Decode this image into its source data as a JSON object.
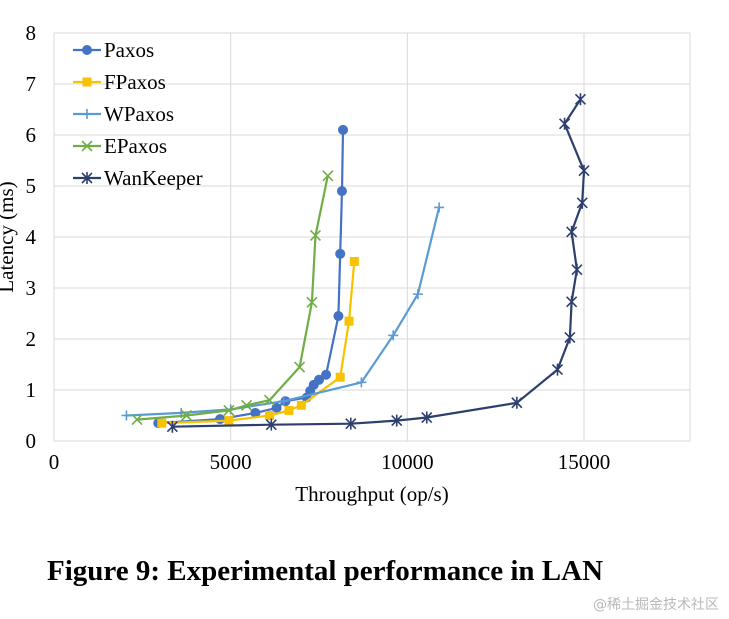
{
  "chart_data": {
    "type": "line",
    "xlabel": "Throughput (op/s)",
    "ylabel": "Latency (ms)",
    "xlim": [
      0,
      18000
    ],
    "ylim": [
      0,
      8
    ],
    "xticks": [
      0,
      5000,
      10000,
      15000
    ],
    "yticks": [
      0,
      1,
      2,
      3,
      4,
      5,
      6,
      7,
      8
    ],
    "grid": true,
    "legend_position": "top-left",
    "series": [
      {
        "name": "Paxos",
        "color": "#4472c4",
        "marker": "circle",
        "points": [
          [
            2950,
            0.35
          ],
          [
            4700,
            0.43
          ],
          [
            5700,
            0.55
          ],
          [
            6300,
            0.65
          ],
          [
            6550,
            0.78
          ],
          [
            7150,
            0.85
          ],
          [
            7250,
            0.98
          ],
          [
            7350,
            1.1
          ],
          [
            7500,
            1.2
          ],
          [
            7700,
            1.3
          ],
          [
            8050,
            2.45
          ],
          [
            8100,
            3.67
          ],
          [
            8150,
            4.9
          ],
          [
            8180,
            6.1
          ]
        ]
      },
      {
        "name": "FPaxos",
        "color": "#f7c200",
        "marker": "square",
        "points": [
          [
            3050,
            0.35
          ],
          [
            4950,
            0.4
          ],
          [
            6100,
            0.5
          ],
          [
            6650,
            0.6
          ],
          [
            7000,
            0.7
          ],
          [
            8100,
            1.25
          ],
          [
            8350,
            2.35
          ],
          [
            8500,
            3.52
          ]
        ]
      },
      {
        "name": "WPaxos",
        "color": "#5b9bd5",
        "marker": "plus",
        "points": [
          [
            2050,
            0.5
          ],
          [
            3600,
            0.55
          ],
          [
            5000,
            0.62
          ],
          [
            6500,
            0.78
          ],
          [
            8700,
            1.15
          ],
          [
            9600,
            2.07
          ],
          [
            10300,
            2.88
          ],
          [
            10900,
            4.58
          ]
        ]
      },
      {
        "name": "EPaxos",
        "color": "#70ad47",
        "marker": "x",
        "points": [
          [
            2350,
            0.42
          ],
          [
            3750,
            0.5
          ],
          [
            4950,
            0.6
          ],
          [
            5450,
            0.7
          ],
          [
            6100,
            0.8
          ],
          [
            6950,
            1.45
          ],
          [
            7300,
            2.72
          ],
          [
            7400,
            4.03
          ],
          [
            7750,
            5.2
          ]
        ]
      },
      {
        "name": "WanKeeper",
        "color": "#2e3f6e",
        "marker": "star",
        "points": [
          [
            3350,
            0.28
          ],
          [
            6150,
            0.32
          ],
          [
            8400,
            0.34
          ],
          [
            9700,
            0.4
          ],
          [
            10550,
            0.46
          ],
          [
            13100,
            0.75
          ],
          [
            14250,
            1.4
          ],
          [
            14600,
            2.03
          ],
          [
            14650,
            2.73
          ],
          [
            14800,
            3.36
          ],
          [
            14650,
            4.1
          ],
          [
            14950,
            4.67
          ],
          [
            15000,
            5.3
          ],
          [
            14450,
            6.22
          ],
          [
            14900,
            6.7
          ]
        ]
      }
    ]
  },
  "caption": "Figure 9: Experimental performance in LAN",
  "watermark": "@稀土掘金技术社区"
}
